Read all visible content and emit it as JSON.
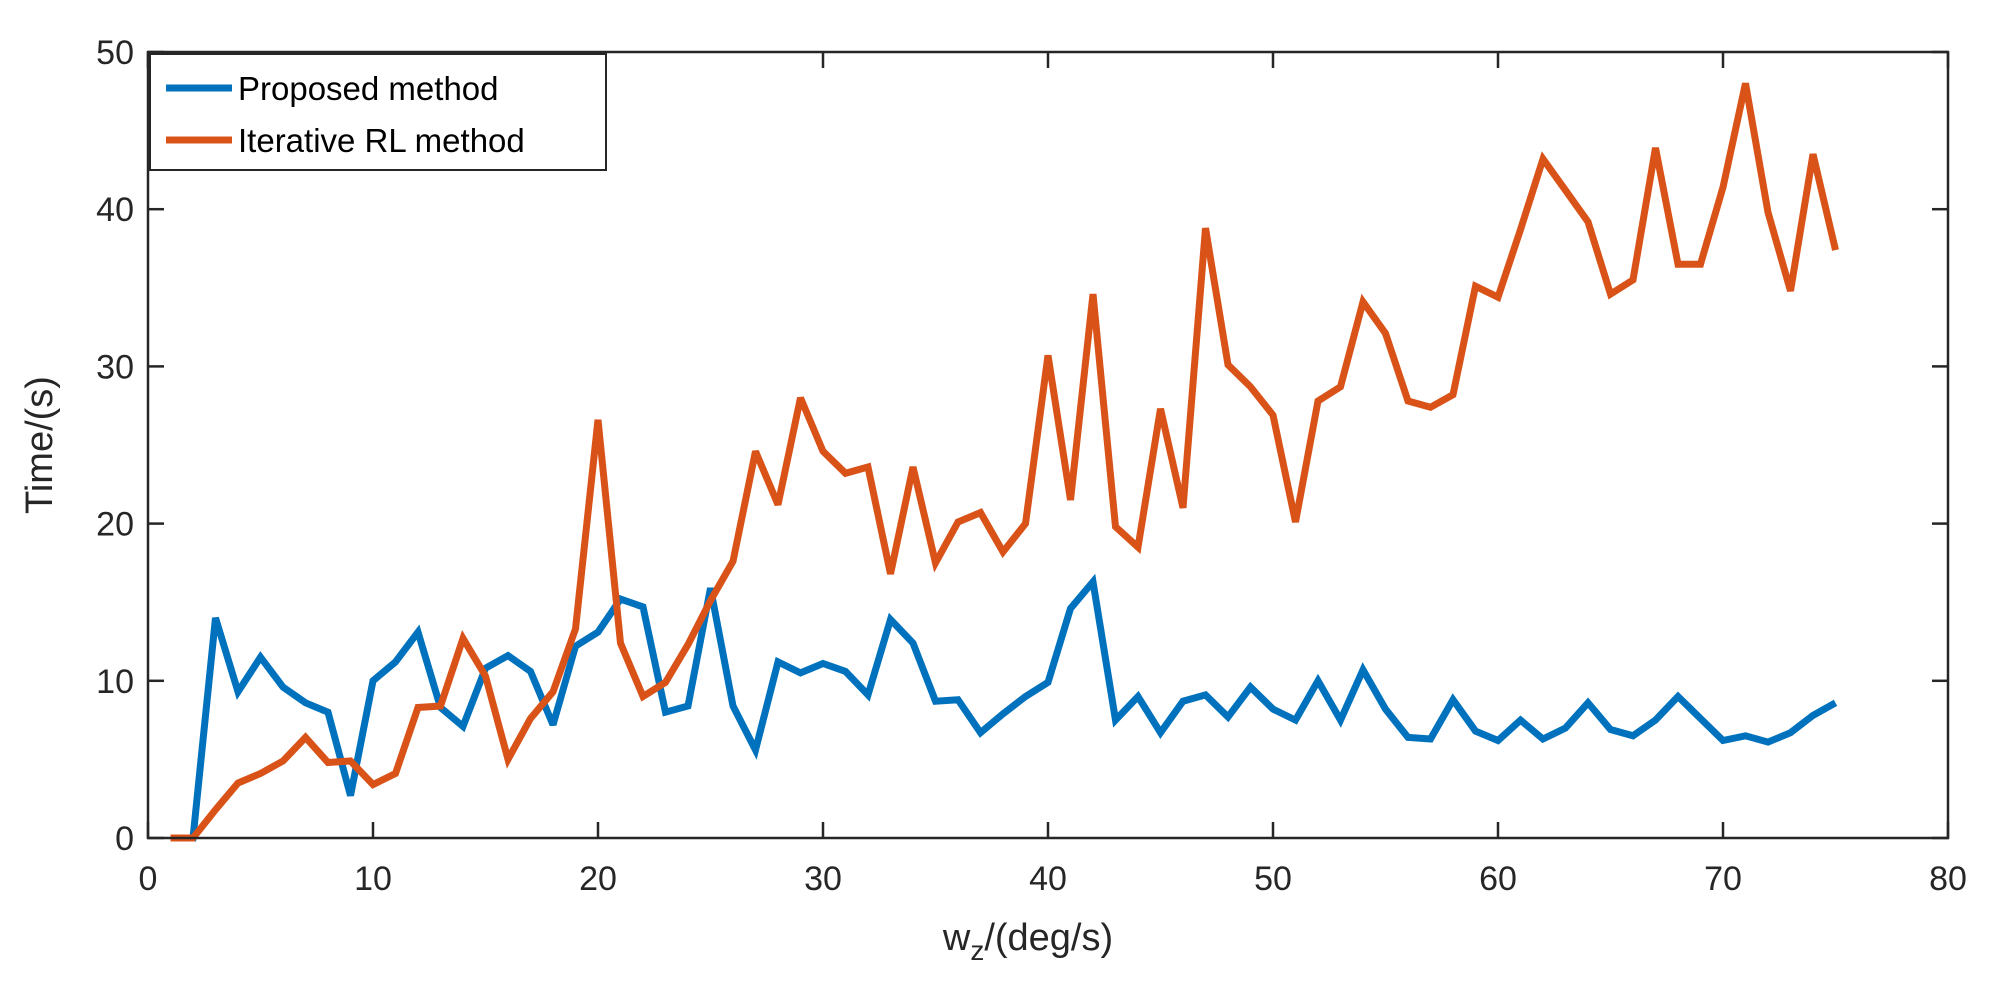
{
  "chart_data": {
    "type": "line",
    "xlabel": "w_z/(deg/s)",
    "xlabel_main": "w",
    "xlabel_sub": "z",
    "xlabel_rest": "/(deg/s)",
    "ylabel": "Time/(s)",
    "xlim": [
      0,
      80
    ],
    "ylim": [
      0,
      50
    ],
    "xticks": [
      0,
      10,
      20,
      30,
      40,
      50,
      60,
      70,
      80
    ],
    "yticks": [
      0,
      10,
      20,
      30,
      40,
      50
    ],
    "grid": false,
    "legend_position": "top-left",
    "x": [
      1,
      2,
      3,
      4,
      5,
      6,
      7,
      8,
      9,
      10,
      11,
      12,
      13,
      14,
      15,
      16,
      17,
      18,
      19,
      20,
      21,
      22,
      23,
      24,
      25,
      26,
      27,
      28,
      29,
      30,
      31,
      32,
      33,
      34,
      35,
      36,
      37,
      38,
      39,
      40,
      41,
      42,
      43,
      44,
      45,
      46,
      47,
      48,
      49,
      50,
      51,
      52,
      53,
      54,
      55,
      56,
      57,
      58,
      59,
      60,
      61,
      62,
      63,
      64,
      65,
      66,
      67,
      68,
      69,
      70,
      71,
      72,
      73,
      74,
      75
    ],
    "series": [
      {
        "name": "Proposed method",
        "color": "#0072BD",
        "values": [
          0,
          0,
          14,
          9.3,
          11.5,
          9.6,
          8.6,
          8,
          2.7,
          10,
          11.2,
          13.1,
          8.3,
          7.1,
          10.8,
          11.6,
          10.6,
          7.2,
          12.2,
          13.1,
          15.2,
          14.7,
          8,
          8.4,
          15.9,
          8.4,
          5.6,
          11.2,
          10.5,
          11.1,
          10.6,
          9.1,
          13.9,
          12.4,
          8.7,
          8.8,
          6.7,
          7.9,
          9,
          9.9,
          14.6,
          16.3,
          7.5,
          9,
          6.7,
          8.7,
          9.1,
          7.7,
          9.6,
          8.2,
          7.5,
          10,
          7.5,
          10.7,
          8.2,
          6.4,
          6.3,
          8.8,
          6.8,
          6.2,
          7.5,
          6.3,
          7,
          8.6,
          6.9,
          6.5,
          7.5,
          9,
          7.6,
          6.2,
          6.5,
          6.1,
          6.7,
          7.8,
          8.6
        ]
      },
      {
        "name": "Iterative RL method",
        "color": "#D95319",
        "values": [
          0,
          0,
          1.8,
          3.5,
          4.1,
          4.9,
          6.4,
          4.8,
          4.9,
          3.4,
          4.1,
          8.3,
          8.4,
          12.7,
          10.3,
          5,
          7.6,
          9.3,
          13.3,
          26.6,
          12.4,
          9,
          9.9,
          12.3,
          15.1,
          17.6,
          24.6,
          21.2,
          28,
          24.6,
          23.2,
          23.6,
          16.8,
          23.6,
          17.5,
          20.1,
          20.7,
          18.2,
          20,
          30.7,
          21.5,
          34.6,
          19.8,
          18.5,
          27.3,
          21,
          38.8,
          30.1,
          28.7,
          26.9,
          20.1,
          27.8,
          28.7,
          34.1,
          32.1,
          27.8,
          27.4,
          28.2,
          35.1,
          34.4,
          38.7,
          43.2,
          41.2,
          39.2,
          34.6,
          35.5,
          43.9,
          36.5,
          36.5,
          41.4,
          48,
          39.8,
          34.8,
          43.5,
          37.4
        ]
      }
    ]
  }
}
